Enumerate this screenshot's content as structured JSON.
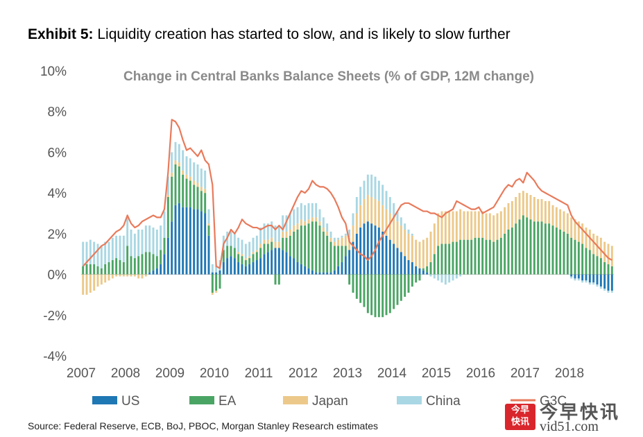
{
  "exhibit": {
    "label": "Exhibit 5:",
    "title": "Liquidity creation has started to slow, and is likely to slow further"
  },
  "source": "Source: Federal Reserve, ECB, BoJ, PBOC, Morgan Stanley Research estimates",
  "watermark": {
    "badge_top": "今早",
    "badge_bottom": "快讯",
    "name": "今早快讯",
    "site": "vid51.com"
  },
  "chart_data": {
    "type": "bar",
    "title": "Change in Central Banks Balance Sheets (% of GDP, 12M change)",
    "xlabel": "",
    "ylabel": "",
    "ylim": [
      -4,
      10
    ],
    "yticks": [
      "10%",
      "8%",
      "6%",
      "4%",
      "2%",
      "0%",
      "-2%",
      "-4%"
    ],
    "ytick_values": [
      10,
      8,
      6,
      4,
      2,
      0,
      -2,
      -4
    ],
    "xticks": [
      "2007",
      "2008",
      "2009",
      "2010",
      "2011",
      "2012",
      "2013",
      "2014",
      "2015",
      "2016",
      "2017",
      "2018"
    ],
    "months_per_year": 12,
    "legend": {
      "position": "bottom"
    },
    "colors": {
      "US": "#1f77b4",
      "EA": "#4aa564",
      "Japan": "#ecc98a",
      "China": "#a9d7e3",
      "G3C": "#e87a5b"
    },
    "series": [
      {
        "name": "US",
        "kind": "bar",
        "values": [
          0,
          0,
          0,
          0,
          0,
          0,
          0,
          0,
          0,
          0,
          0,
          0,
          0,
          0,
          0,
          0,
          0,
          0,
          0.1,
          0.2,
          0.3,
          0.5,
          1.0,
          1.8,
          2.6,
          3.4,
          3.5,
          3.3,
          3.3,
          3.3,
          3.2,
          3.2,
          3.1,
          3.0,
          1.9,
          0.1,
          0.1,
          0.2,
          0.6,
          0.8,
          0.9,
          0.8,
          0.6,
          0.5,
          0.4,
          0.5,
          0.6,
          0.7,
          0.8,
          1.0,
          1.1,
          1.2,
          1.3,
          1.3,
          1.2,
          1.1,
          0.9,
          0.8,
          0.6,
          0.5,
          0.4,
          0.3,
          0.2,
          0.1,
          0.1,
          0.1,
          0.1,
          0.1,
          0.2,
          0.4,
          0.6,
          0.9,
          1.2,
          1.6,
          2.0,
          2.3,
          2.5,
          2.6,
          2.5,
          2.4,
          2.3,
          2.1,
          1.9,
          1.7,
          1.5,
          1.3,
          1.1,
          0.9,
          0.7,
          0.6,
          0.4,
          0.3,
          0.2,
          0.1,
          0,
          0,
          0,
          0,
          0,
          0,
          0,
          0,
          0,
          0,
          0,
          0,
          0,
          0,
          0,
          0,
          0,
          0,
          0,
          0,
          0,
          0,
          0,
          0,
          0,
          0,
          0,
          0,
          0,
          0,
          0,
          0,
          0,
          0,
          0,
          0,
          0,
          0,
          -0.1,
          -0.2,
          -0.2,
          -0.3,
          -0.3,
          -0.4,
          -0.4,
          -0.5,
          -0.6,
          -0.7,
          -0.8,
          -0.8
        ]
      },
      {
        "name": "EA",
        "kind": "bar",
        "values": [
          0.4,
          0.5,
          0.5,
          0.5,
          0.4,
          0.3,
          0.5,
          0.6,
          0.7,
          0.8,
          0.7,
          0.6,
          1.4,
          0.9,
          0.8,
          0.9,
          1.0,
          1.1,
          1.0,
          0.8,
          0.6,
          0.7,
          0.8,
          2.0,
          2.2,
          2.0,
          1.8,
          1.6,
          1.4,
          1.3,
          1.2,
          1.1,
          1.0,
          1.0,
          0.5,
          -0.9,
          -0.8,
          -0.7,
          0.6,
          0.6,
          0.5,
          0.5,
          0.4,
          0.4,
          0.3,
          0.3,
          0.4,
          0.4,
          0.5,
          0.5,
          0.4,
          0.4,
          -0.5,
          -0.5,
          0.6,
          0.7,
          1.0,
          1.3,
          1.6,
          1.9,
          2.0,
          2.2,
          2.4,
          2.5,
          2.3,
          2.0,
          1.8,
          1.5,
          1.2,
          1.0,
          0.8,
          0.5,
          -0.5,
          -0.9,
          -1.2,
          -1.4,
          -1.6,
          -1.9,
          -2.0,
          -2.1,
          -2.1,
          -2.1,
          -2.0,
          -1.9,
          -1.7,
          -1.5,
          -1.3,
          -1.1,
          -0.9,
          -0.6,
          -0.4,
          -0.3,
          0.1,
          0.3,
          0.6,
          1.0,
          1.4,
          1.5,
          1.5,
          1.5,
          1.6,
          1.6,
          1.7,
          1.7,
          1.7,
          1.7,
          1.8,
          1.8,
          1.8,
          1.7,
          1.7,
          1.6,
          1.7,
          1.8,
          2.0,
          2.2,
          2.3,
          2.5,
          2.7,
          2.9,
          2.8,
          2.7,
          2.6,
          2.6,
          2.6,
          2.5,
          2.5,
          2.4,
          2.3,
          2.2,
          2.1,
          2.0,
          1.8,
          1.7,
          1.6,
          1.5,
          1.3,
          1.2,
          1.0,
          0.9,
          0.8,
          0.6,
          0.5,
          0.4
        ]
      },
      {
        "name": "Japan",
        "kind": "bar",
        "values": [
          -1.0,
          -1.0,
          -0.9,
          -0.8,
          -0.6,
          -0.5,
          -0.4,
          -0.3,
          -0.2,
          -0.1,
          -0.1,
          -0.1,
          -0.1,
          -0.1,
          -0.1,
          -0.2,
          -0.2,
          -0.1,
          0,
          0,
          0,
          0,
          0,
          0.1,
          0.2,
          0.2,
          0.2,
          0.2,
          0.2,
          0.2,
          0.2,
          0.2,
          0.2,
          0.2,
          0.1,
          -0.1,
          -0.1,
          0,
          0,
          0,
          0,
          0,
          0.1,
          0.1,
          0.1,
          0.1,
          0.1,
          0.1,
          0.2,
          0.2,
          0.2,
          0.2,
          0.3,
          0.3,
          0.3,
          0.3,
          0.3,
          0.3,
          0.3,
          0.3,
          0.2,
          0.2,
          0.2,
          0.2,
          0.2,
          0.2,
          0.2,
          0.2,
          0.2,
          0.3,
          0.4,
          0.5,
          0.6,
          0.8,
          1.0,
          1.1,
          1.2,
          1.3,
          1.3,
          1.3,
          1.3,
          1.3,
          1.3,
          1.3,
          1.3,
          1.3,
          1.3,
          1.3,
          1.3,
          1.3,
          1.3,
          1.3,
          1.4,
          1.4,
          1.5,
          1.5,
          1.6,
          1.6,
          1.6,
          1.6,
          1.5,
          1.5,
          1.5,
          1.4,
          1.4,
          1.4,
          1.3,
          1.3,
          1.3,
          1.3,
          1.3,
          1.3,
          1.3,
          1.3,
          1.3,
          1.3,
          1.3,
          1.3,
          1.3,
          1.2,
          1.2,
          1.2,
          1.2,
          1.1,
          1.1,
          1.1,
          1.1,
          1.0,
          1.0,
          1.0,
          1.0,
          1.0,
          1.0,
          1.0,
          1.0,
          1.0,
          1.0,
          1.0,
          1.0,
          1.0,
          1.0,
          1.0,
          1.0,
          1.0
        ]
      },
      {
        "name": "China",
        "kind": "bar",
        "values": [
          1.2,
          1.1,
          1.2,
          1.1,
          1.1,
          1.1,
          1.1,
          1.0,
          1.1,
          1.1,
          1.2,
          1.3,
          1.4,
          1.3,
          1.2,
          1.3,
          1.2,
          1.3,
          1.3,
          1.3,
          1.3,
          1.2,
          1.3,
          0.9,
          1.0,
          0.9,
          0.9,
          1.0,
          0.9,
          0.9,
          0.9,
          0.9,
          0.9,
          0.9,
          0.7,
          0.4,
          0.3,
          0.5,
          0.7,
          0.7,
          0.7,
          0.7,
          0.7,
          0.7,
          0.7,
          0.7,
          0.7,
          0.7,
          0.8,
          0.8,
          0.8,
          0.8,
          0.8,
          0.8,
          0.8,
          0.8,
          0.8,
          0.8,
          0.8,
          0.8,
          0.8,
          0.8,
          0.7,
          0.7,
          0.6,
          0.5,
          0.4,
          0.3,
          0.2,
          0.1,
          0.1,
          0.1,
          0.4,
          0.6,
          0.8,
          0.9,
          0.9,
          1.0,
          1.1,
          1.1,
          1.0,
          1.0,
          0.9,
          0.8,
          0.7,
          0.5,
          0.4,
          0.3,
          0.2,
          0.1,
          0,
          0,
          0,
          0,
          -0.1,
          -0.2,
          -0.3,
          -0.4,
          -0.5,
          -0.4,
          -0.3,
          -0.2,
          -0.1,
          0,
          0,
          0,
          0,
          0,
          0,
          0,
          0,
          0,
          0,
          0,
          0,
          0,
          0,
          0,
          0,
          0,
          0,
          0,
          0,
          0,
          0,
          0,
          0,
          0,
          0,
          0,
          0,
          0,
          -0.1,
          -0.1,
          -0.1,
          -0.1,
          -0.1,
          -0.1,
          -0.1,
          -0.1,
          -0.1,
          -0.1,
          -0.1,
          -0.1
        ]
      },
      {
        "name": "G3C",
        "kind": "line",
        "values": [
          0.4,
          0.6,
          0.8,
          1.0,
          1.2,
          1.4,
          1.5,
          1.7,
          1.9,
          2.1,
          2.2,
          2.4,
          2.9,
          2.5,
          2.3,
          2.4,
          2.6,
          2.7,
          2.8,
          2.9,
          2.8,
          2.8,
          3.2,
          5.0,
          7.6,
          7.5,
          7.2,
          6.6,
          6.1,
          6.2,
          6.0,
          5.8,
          6.1,
          5.6,
          5.4,
          4.4,
          0.4,
          0.3,
          1.5,
          1.8,
          2.2,
          2.0,
          2.3,
          2.7,
          2.5,
          2.4,
          2.3,
          2.3,
          2.2,
          2.3,
          2.4,
          2.4,
          2.2,
          2.4,
          2.2,
          2.6,
          3.0,
          3.4,
          3.8,
          4.1,
          4.0,
          4.2,
          4.6,
          4.4,
          4.3,
          4.3,
          4.2,
          4.0,
          3.7,
          3.3,
          2.8,
          2.5,
          1.6,
          1.4,
          1.2,
          1.0,
          0.9,
          0.7,
          0.9,
          1.2,
          1.6,
          1.9,
          2.2,
          2.5,
          2.8,
          3.1,
          3.4,
          3.5,
          3.5,
          3.4,
          3.3,
          3.2,
          3.1,
          3.1,
          3.0,
          3.0,
          2.9,
          2.8,
          3.0,
          3.1,
          3.2,
          3.6,
          3.5,
          3.4,
          3.3,
          3.2,
          3.2,
          3.3,
          3.0,
          3.1,
          3.2,
          3.3,
          3.6,
          3.9,
          4.2,
          4.4,
          4.3,
          4.6,
          4.7,
          4.5,
          5.0,
          4.8,
          4.6,
          4.3,
          4.1,
          4.0,
          3.9,
          3.8,
          3.7,
          3.6,
          3.5,
          3.4,
          2.9,
          2.6,
          2.4,
          2.2,
          2.0,
          1.8,
          1.6,
          1.4,
          1.2,
          1.0,
          0.8,
          0.7
        ]
      }
    ]
  }
}
